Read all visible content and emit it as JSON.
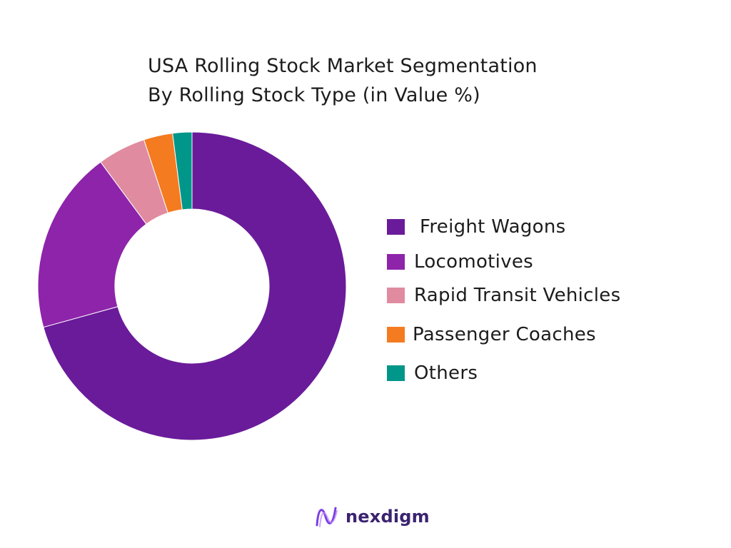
{
  "chart_data": {
    "type": "pie",
    "title_lines": [
      "USA Rolling Stock Market Segmentation",
      "By Rolling Stock Type (in Value %)"
    ],
    "categories": [
      "Freight Wagons",
      "Locomotives",
      "Rapid Transit Vehicles",
      "Passenger Coaches",
      "Others"
    ],
    "values": [
      70,
      19,
      5,
      3,
      2
    ],
    "unit": "%",
    "colors": [
      "#6a1b9a",
      "#8e24aa",
      "#e08ba0",
      "#f47b20",
      "#00968a"
    ],
    "donut": true,
    "legend_position": "right"
  },
  "brand": {
    "logo_text": "nexdigm",
    "logo_icon": "nexdigm-wave-logo"
  }
}
